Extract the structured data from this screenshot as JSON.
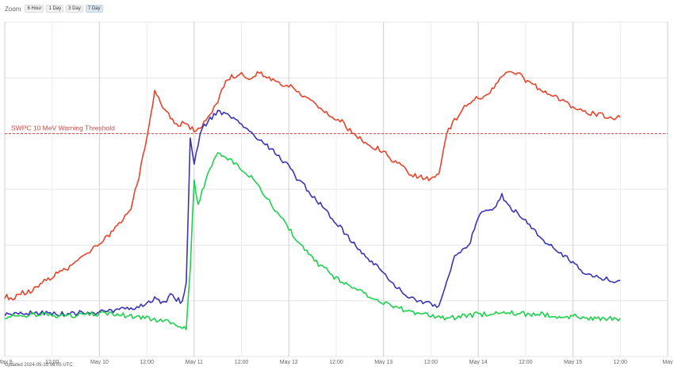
{
  "toolbar": {
    "zoom_label": "Zoom",
    "buttons": [
      "6 Hour",
      "1 Day",
      "3 Day",
      "7 Day"
    ],
    "active": "7 Day"
  },
  "footer": {
    "updated": "Updated 2024-05-15 06:05 UTC"
  },
  "chart_data": {
    "type": "line",
    "title": "",
    "xlabel": "",
    "ylabel": "",
    "x_ticks": [
      "May 9",
      "12:00",
      "May 10",
      "12:00",
      "May 11",
      "12:00",
      "May 12",
      "12:00",
      "May 13",
      "12:00",
      "May 14",
      "12:00",
      "May 15",
      "12:00",
      "May"
    ],
    "x_range_hours": [
      0,
      168
    ],
    "log_scale": true,
    "grid": true,
    "legend": "none",
    "threshold": {
      "label": "SWPC 10 MeV Warning Threshold",
      "value": 10,
      "color": "#d24a4a"
    },
    "series": [
      {
        "color": "#e8432b",
        "x": [
          0,
          2,
          4,
          6,
          8,
          10,
          12,
          14,
          16,
          18,
          20,
          22,
          24,
          26,
          28,
          30,
          32,
          34,
          35,
          36,
          37,
          38,
          40,
          42,
          44,
          46,
          48,
          50,
          52,
          54,
          56,
          58,
          60,
          62,
          64,
          66,
          68,
          70,
          72,
          74,
          76,
          78,
          80,
          82,
          84,
          86,
          88,
          90,
          92,
          94,
          96,
          98,
          100,
          102,
          104,
          106,
          108,
          110,
          112,
          114,
          116,
          118,
          120,
          122,
          124,
          126,
          128,
          130,
          132,
          134,
          136,
          138,
          140,
          142,
          144,
          146,
          148,
          150,
          152,
          154,
          156
        ],
        "y": [
          0.35,
          0.33,
          0.37,
          0.38,
          0.42,
          0.48,
          0.52,
          0.58,
          0.62,
          0.7,
          0.8,
          0.9,
          1.0,
          1.2,
          1.4,
          1.7,
          2.2,
          4.0,
          6.5,
          9.0,
          14.0,
          25.0,
          17.0,
          14.0,
          12.0,
          12.5,
          10.5,
          11.5,
          15.0,
          19.0,
          30.0,
          33.0,
          34.0,
          32.0,
          35.0,
          33.0,
          30.0,
          28.0,
          27.0,
          24.0,
          21.0,
          19.0,
          17.0,
          15.0,
          13.5,
          12.5,
          10.0,
          9.0,
          8.0,
          7.5,
          7.0,
          5.5,
          5.5,
          4.5,
          4.2,
          4.0,
          3.9,
          4.2,
          10.0,
          13.0,
          17.0,
          19.0,
          21.0,
          22.0,
          26.0,
          33.0,
          37.0,
          35.0,
          30.0,
          27.0,
          25.0,
          23.0,
          21.0,
          19.0,
          17.0,
          16.0,
          15.5,
          15.0,
          14.5,
          14.0,
          14.0
        ]
      },
      {
        "color": "#3a34b8",
        "x": [
          0,
          4,
          8,
          12,
          16,
          20,
          24,
          28,
          30,
          32,
          34,
          36,
          38,
          40,
          42,
          44,
          45,
          46,
          47,
          48,
          49,
          50,
          52,
          54,
          56,
          58,
          60,
          62,
          64,
          66,
          68,
          70,
          72,
          74,
          76,
          78,
          80,
          82,
          84,
          86,
          88,
          90,
          92,
          94,
          96,
          98,
          100,
          102,
          104,
          106,
          108,
          110,
          112,
          114,
          116,
          118,
          120,
          122,
          124,
          126,
          128,
          130,
          132,
          134,
          136,
          138,
          140,
          142,
          144,
          146,
          148,
          150,
          152,
          154,
          156
        ],
        "y": [
          0.24,
          0.24,
          0.25,
          0.24,
          0.24,
          0.25,
          0.25,
          0.26,
          0.27,
          0.27,
          0.28,
          0.3,
          0.33,
          0.3,
          0.35,
          0.32,
          0.3,
          0.45,
          9.0,
          5.5,
          8.0,
          11.0,
          13.5,
          15.5,
          15.0,
          13.5,
          12.0,
          10.5,
          9.0,
          8.0,
          7.0,
          6.0,
          5.0,
          4.0,
          3.4,
          2.8,
          2.3,
          1.9,
          1.6,
          1.3,
          1.1,
          0.9,
          0.75,
          0.65,
          0.55,
          0.45,
          0.4,
          0.35,
          0.33,
          0.3,
          0.3,
          0.28,
          0.45,
          0.8,
          0.9,
          1.1,
          1.8,
          2.0,
          2.2,
          2.8,
          2.2,
          1.9,
          1.7,
          1.4,
          1.1,
          1.0,
          0.9,
          0.8,
          0.7,
          0.6,
          0.55,
          0.52,
          0.5,
          0.48,
          0.48
        ]
      },
      {
        "color": "#1fd14d",
        "x": [
          0,
          4,
          8,
          12,
          16,
          20,
          24,
          28,
          32,
          36,
          40,
          44,
          46,
          47,
          48,
          49,
          50,
          52,
          54,
          56,
          58,
          60,
          62,
          64,
          66,
          68,
          70,
          72,
          74,
          76,
          78,
          80,
          82,
          84,
          86,
          88,
          90,
          92,
          94,
          96,
          98,
          100,
          102,
          104,
          106,
          108,
          110,
          112,
          116,
          120,
          124,
          128,
          132,
          136,
          140,
          144,
          148,
          152,
          156
        ],
        "y": [
          0.23,
          0.23,
          0.24,
          0.23,
          0.23,
          0.24,
          0.24,
          0.24,
          0.23,
          0.22,
          0.21,
          0.19,
          0.18,
          0.6,
          4.0,
          2.2,
          3.0,
          5.0,
          6.5,
          6.0,
          5.5,
          4.8,
          4.2,
          3.5,
          2.8,
          2.2,
          1.8,
          1.4,
          1.1,
          0.9,
          0.75,
          0.65,
          0.58,
          0.5,
          0.46,
          0.42,
          0.38,
          0.35,
          0.32,
          0.3,
          0.28,
          0.27,
          0.26,
          0.25,
          0.24,
          0.23,
          0.22,
          0.22,
          0.23,
          0.24,
          0.24,
          0.25,
          0.24,
          0.24,
          0.23,
          0.23,
          0.22,
          0.22,
          0.22
        ]
      }
    ]
  }
}
